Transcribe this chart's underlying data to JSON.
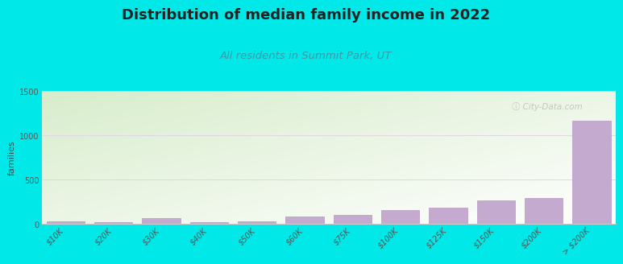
{
  "title": "Distribution of median family income in 2022",
  "subtitle": "All residents in Summit Park, UT",
  "ylabel": "families",
  "categories": [
    "$10K",
    "$20K",
    "$30K",
    "$40K",
    "$50K",
    "$60K",
    "$75K",
    "$100K",
    "$125K",
    "$150K",
    "$200K",
    "> $200K"
  ],
  "values": [
    25,
    15,
    65,
    15,
    30,
    80,
    100,
    155,
    185,
    265,
    290,
    1165
  ],
  "bar_color": "#c5aad0",
  "bar_edge_color": "#b898c4",
  "background_color": "#00e8e8",
  "plot_bg_topleft": "#d8edcc",
  "plot_bg_topright": "#eef5e8",
  "plot_bg_bottom": "#f8fff4",
  "title_fontsize": 13,
  "subtitle_fontsize": 9.5,
  "subtitle_color": "#3a9aaa",
  "ylabel_fontsize": 8,
  "tick_fontsize": 7,
  "ylim": [
    0,
    1500
  ],
  "yticks": [
    0,
    500,
    1000,
    1500
  ],
  "watermark": "ⓘ City-Data.com",
  "grid_color": "#ddd8e4",
  "title_color": "#222222",
  "tick_color": "#555555"
}
